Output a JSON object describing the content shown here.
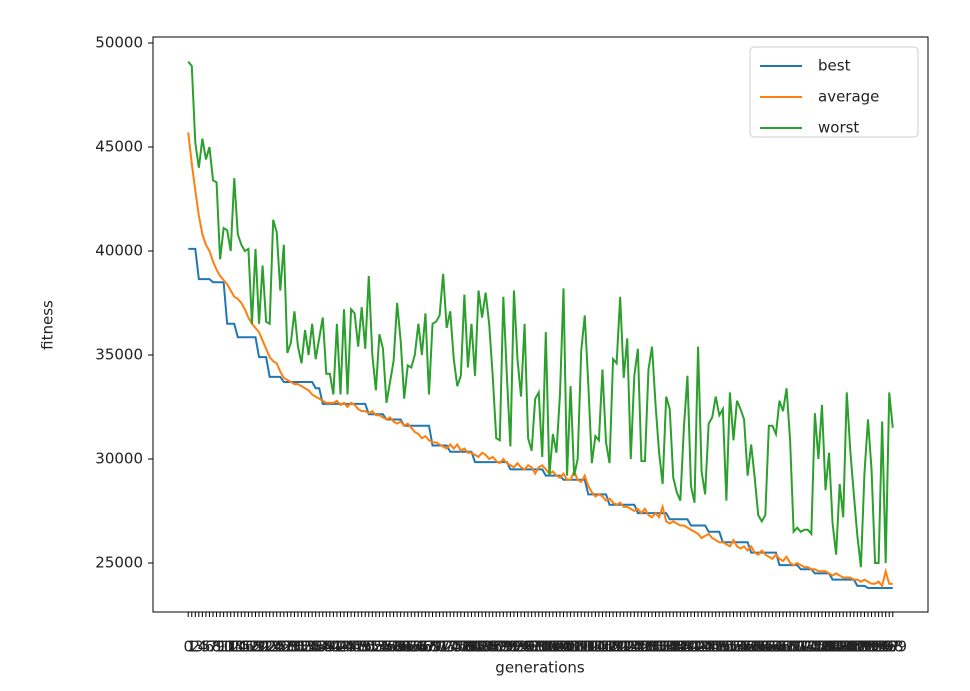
{
  "chart_data": {
    "type": "line",
    "x_label": "generations",
    "y_label": "fitness",
    "x": [
      0,
      1,
      2,
      3,
      4,
      5,
      6,
      7,
      8,
      9,
      10,
      11,
      12,
      13,
      14,
      15,
      16,
      17,
      18,
      19,
      20,
      21,
      22,
      23,
      24,
      25,
      26,
      27,
      28,
      29,
      30,
      31,
      32,
      33,
      34,
      35,
      36,
      37,
      38,
      39,
      40,
      41,
      42,
      43,
      44,
      45,
      46,
      47,
      48,
      49,
      50,
      51,
      52,
      53,
      54,
      55,
      56,
      57,
      58,
      59,
      60,
      61,
      62,
      63,
      64,
      65,
      66,
      67,
      68,
      69,
      70,
      71,
      72,
      73,
      74,
      75,
      76,
      77,
      78,
      79,
      80,
      81,
      82,
      83,
      84,
      85,
      86,
      87,
      88,
      89,
      90,
      91,
      92,
      93,
      94,
      95,
      96,
      97,
      98,
      99,
      100,
      101,
      102,
      103,
      104,
      105,
      106,
      107,
      108,
      109,
      110,
      111,
      112,
      113,
      114,
      115,
      116,
      117,
      118,
      119,
      120,
      121,
      122,
      123,
      124,
      125,
      126,
      127,
      128,
      129,
      130,
      131,
      132,
      133,
      134,
      135,
      136,
      137,
      138,
      139,
      140,
      141,
      142,
      143,
      144,
      145,
      146,
      147,
      148,
      149,
      150,
      151,
      152,
      153,
      154,
      155,
      156,
      157,
      158,
      159,
      160,
      161,
      162,
      163,
      164,
      165,
      166,
      167,
      168,
      169,
      170,
      171,
      172,
      173,
      174,
      175,
      176,
      177,
      178,
      179,
      180,
      181,
      182,
      183,
      184,
      185,
      186,
      187,
      188,
      189,
      190,
      191,
      192,
      193,
      194,
      195,
      196,
      197,
      198,
      199
    ],
    "xticks": [
      0,
      1,
      2,
      3,
      4,
      5,
      6,
      7,
      8,
      9,
      10,
      11,
      12,
      13,
      14,
      15,
      16,
      17,
      18,
      19,
      20,
      21,
      22,
      23,
      24,
      25,
      26,
      27,
      28,
      29,
      30,
      31,
      32,
      33,
      34,
      35,
      36,
      37,
      38,
      39,
      40,
      41,
      42,
      43,
      44,
      45,
      46,
      47,
      48,
      49,
      50,
      51,
      52,
      53,
      54,
      55,
      56,
      57,
      58,
      59,
      60,
      61,
      62,
      63,
      64,
      65,
      66,
      67,
      68,
      69,
      70,
      71,
      72,
      73,
      74,
      75,
      76,
      77,
      78,
      79,
      80,
      81,
      82,
      83,
      84,
      85,
      86,
      87,
      88,
      89,
      90,
      91,
      92,
      93,
      94,
      95,
      96,
      97,
      98,
      99,
      100,
      101,
      102,
      103,
      104,
      105,
      106,
      107,
      108,
      109,
      110,
      111,
      112,
      113,
      114,
      115,
      116,
      117,
      118,
      119,
      120,
      121,
      122,
      123,
      124,
      125,
      126,
      127,
      128,
      129,
      130,
      131,
      132,
      133,
      134,
      135,
      136,
      137,
      138,
      139,
      140,
      141,
      142,
      143,
      144,
      145,
      146,
      147,
      148,
      149,
      150,
      151,
      152,
      153,
      154,
      155,
      156,
      157,
      158,
      159,
      160,
      161,
      162,
      163,
      164,
      165,
      166,
      167,
      168,
      169,
      170,
      171,
      172,
      173,
      174,
      175,
      176,
      177,
      178,
      179,
      180,
      181,
      182,
      183,
      184,
      185,
      186,
      187,
      188,
      189,
      190,
      191,
      192,
      193,
      194,
      195,
      196,
      197,
      198,
      199
    ],
    "xlim": [
      -9.95,
      208.95
    ],
    "ylim": [
      22644,
      50288
    ],
    "yticks": [
      25000,
      30000,
      35000,
      40000,
      45000,
      50000
    ],
    "legend": "upper right",
    "series": [
      {
        "name": "best",
        "color": "#1f77b4",
        "values": [
          40100,
          40100,
          40100,
          38650,
          38650,
          38650,
          38650,
          38500,
          38500,
          38500,
          38500,
          36500,
          36500,
          36500,
          35850,
          35850,
          35850,
          35850,
          35850,
          35850,
          34900,
          34900,
          34900,
          33950,
          33950,
          33950,
          33950,
          33700,
          33700,
          33700,
          33700,
          33700,
          33700,
          33700,
          33700,
          33700,
          33400,
          33400,
          32650,
          32650,
          32650,
          32650,
          32650,
          32650,
          32650,
          32650,
          32650,
          32650,
          32650,
          32650,
          32650,
          32150,
          32150,
          32150,
          32150,
          32150,
          31900,
          31900,
          31900,
          31900,
          31900,
          31600,
          31600,
          31600,
          31600,
          31600,
          31600,
          31600,
          31600,
          30650,
          30650,
          30650,
          30650,
          30650,
          30350,
          30350,
          30350,
          30350,
          30350,
          30350,
          30350,
          29850,
          29850,
          29850,
          29850,
          29850,
          29850,
          29850,
          29850,
          29850,
          29850,
          29500,
          29500,
          29500,
          29500,
          29500,
          29500,
          29500,
          29500,
          29500,
          29500,
          29200,
          29200,
          29200,
          29200,
          29200,
          29000,
          29000,
          29000,
          29000,
          29000,
          29000,
          29000,
          28300,
          28300,
          28300,
          28300,
          28300,
          28300,
          27800,
          27800,
          27800,
          27800,
          27800,
          27800,
          27800,
          27800,
          27400,
          27400,
          27400,
          27400,
          27400,
          27400,
          27400,
          27400,
          27400,
          27100,
          27100,
          27100,
          27100,
          27100,
          27100,
          26800,
          26800,
          26800,
          26800,
          26800,
          26500,
          26500,
          26500,
          26500,
          26000,
          26000,
          26000,
          26000,
          26000,
          26000,
          26000,
          26000,
          25500,
          25500,
          25500,
          25500,
          25500,
          25500,
          25500,
          25500,
          24900,
          24900,
          24900,
          24900,
          24900,
          24900,
          24700,
          24700,
          24700,
          24700,
          24500,
          24500,
          24500,
          24500,
          24500,
          24200,
          24200,
          24200,
          24200,
          24200,
          24200,
          24200,
          23900,
          23900,
          23900,
          23800,
          23800,
          23800,
          23800,
          23800,
          23800,
          23800,
          23800
        ]
      },
      {
        "name": "average",
        "color": "#ff7f0e",
        "values": [
          45700,
          44200,
          42900,
          41700,
          40800,
          40300,
          40000,
          39500,
          39100,
          38800,
          38600,
          38400,
          38100,
          37800,
          37700,
          37500,
          37200,
          36800,
          36500,
          36300,
          36100,
          35700,
          35300,
          34900,
          34700,
          34600,
          34200,
          33900,
          33800,
          33700,
          33600,
          33600,
          33500,
          33400,
          33300,
          33100,
          33000,
          32900,
          32800,
          32700,
          32700,
          32700,
          32800,
          32600,
          32700,
          32500,
          32700,
          32600,
          32400,
          32300,
          32300,
          32200,
          32300,
          32100,
          32100,
          32000,
          31900,
          32000,
          31800,
          31700,
          31800,
          31600,
          31700,
          31500,
          31300,
          31200,
          31000,
          31100,
          30900,
          30800,
          30800,
          30700,
          30600,
          30500,
          30700,
          30500,
          30700,
          30400,
          30500,
          30300,
          30300,
          30200,
          30100,
          30300,
          30200,
          30000,
          30100,
          29900,
          29800,
          30000,
          29800,
          29700,
          29600,
          29800,
          29600,
          29500,
          29700,
          29600,
          29300,
          29600,
          29700,
          29500,
          29300,
          29400,
          29200,
          29100,
          29300,
          29000,
          29000,
          29400,
          29000,
          28900,
          29200,
          28700,
          28400,
          28200,
          28300,
          28200,
          28000,
          28100,
          27900,
          27800,
          27900,
          27700,
          27700,
          27600,
          27500,
          27600,
          27400,
          27600,
          27300,
          27200,
          27400,
          27200,
          27700,
          27000,
          26900,
          27000,
          26900,
          26800,
          26800,
          26700,
          26600,
          26500,
          26400,
          26200,
          26300,
          26400,
          26200,
          26100,
          26000,
          26000,
          25900,
          25800,
          26100,
          25800,
          25700,
          25800,
          25600,
          25800,
          25500,
          25400,
          25600,
          25400,
          25300,
          25200,
          25400,
          25200,
          25100,
          25300,
          25000,
          24900,
          25000,
          24900,
          24800,
          24800,
          24700,
          24700,
          24600,
          24600,
          24600,
          24500,
          24400,
          24500,
          24400,
          24300,
          24300,
          24300,
          24200,
          24200,
          24100,
          24200,
          24100,
          24000,
          24000,
          24100,
          23900,
          24600,
          24000,
          24000
        ]
      },
      {
        "name": "worst",
        "color": "#2ca02c",
        "values": [
          49100,
          48900,
          45200,
          44000,
          45400,
          44400,
          45000,
          43400,
          43300,
          39600,
          41100,
          41000,
          40000,
          43500,
          40800,
          40300,
          40000,
          40100,
          36500,
          40100,
          36500,
          39300,
          36600,
          36500,
          41500,
          40900,
          38100,
          40300,
          35100,
          35600,
          37100,
          35400,
          34600,
          36200,
          35000,
          36500,
          34800,
          35800,
          36800,
          34100,
          34100,
          33100,
          36500,
          33100,
          37200,
          33100,
          37200,
          37000,
          35400,
          37300,
          35300,
          38800,
          35000,
          33300,
          36000,
          35300,
          32700,
          33700,
          34700,
          37500,
          35700,
          32900,
          34500,
          34400,
          35000,
          36500,
          35000,
          37000,
          33100,
          36500,
          36600,
          36900,
          38900,
          36300,
          37100,
          34800,
          33500,
          34000,
          37900,
          34400,
          36500,
          34000,
          38100,
          36800,
          38000,
          36500,
          34000,
          31000,
          30900,
          37800,
          34000,
          30600,
          38100,
          34800,
          33000,
          36500,
          31000,
          30400,
          32900,
          33200,
          30100,
          36100,
          29200,
          31200,
          30300,
          33100,
          38200,
          29200,
          33500,
          29200,
          30000,
          35200,
          36900,
          33600,
          29800,
          31100,
          30900,
          34300,
          30800,
          29800,
          34800,
          34600,
          37800,
          33900,
          35800,
          30000,
          34000,
          35300,
          29900,
          29900,
          34300,
          35400,
          32600,
          30300,
          28800,
          33000,
          32400,
          29100,
          28400,
          28000,
          31500,
          34000,
          28700,
          27900,
          35400,
          29400,
          28300,
          31700,
          32000,
          33000,
          32100,
          32400,
          28000,
          33200,
          30900,
          32800,
          32400,
          31900,
          29200,
          30700,
          29100,
          27300,
          27000,
          27300,
          31600,
          31600,
          31200,
          32800,
          32300,
          33400,
          30900,
          26500,
          26700,
          26500,
          26600,
          26600,
          26400,
          32200,
          30000,
          32600,
          28500,
          30300,
          26900,
          25400,
          28800,
          27200,
          33200,
          30400,
          28300,
          26300,
          24800,
          29300,
          31900,
          29500,
          25000,
          25000,
          31800,
          25000,
          33200,
          31500
        ]
      }
    ]
  }
}
